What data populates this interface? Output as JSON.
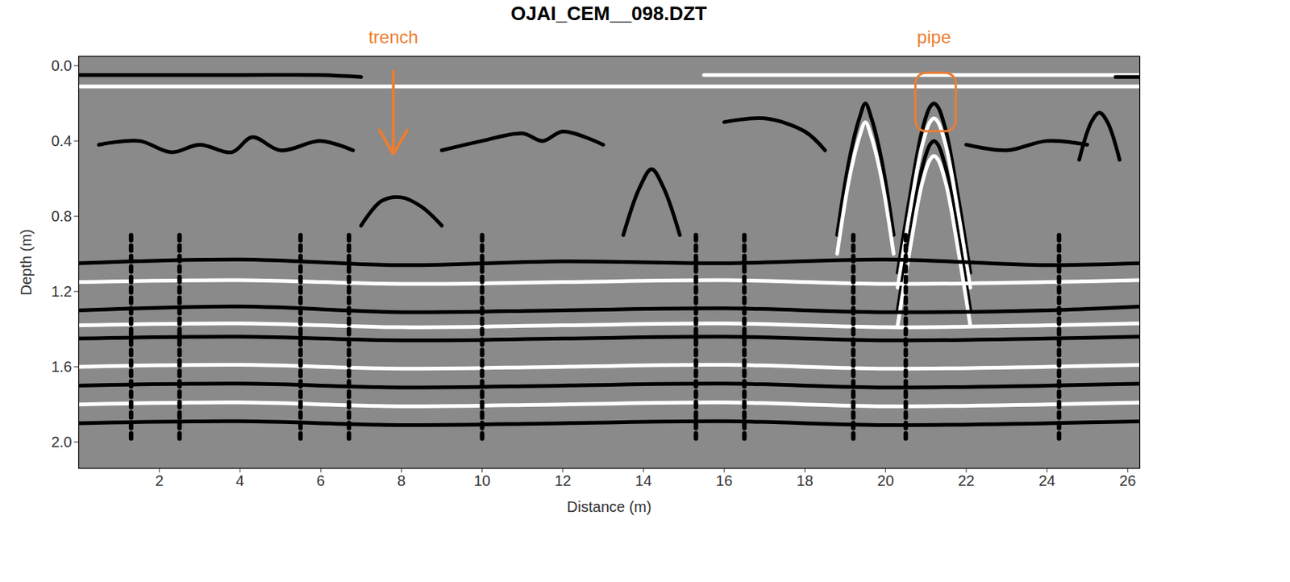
{
  "chart_data": {
    "type": "radargram",
    "title": "OJAI_CEM__098.DZT",
    "x_label": "Distance (m)",
    "y_label": "Depth (m)",
    "xlim": [
      0,
      26.3
    ],
    "ylim": [
      -0.05,
      2.14
    ],
    "xticks": [
      2,
      4,
      6,
      8,
      10,
      12,
      14,
      16,
      18,
      20,
      22,
      24,
      26
    ],
    "yticks": [
      {
        "value": 0,
        "label": "0.0"
      },
      {
        "value": 0.4,
        "label": "0.4"
      },
      {
        "value": 0.8,
        "label": "0.8"
      },
      {
        "value": 1.2,
        "label": "1.2"
      },
      {
        "value": 1.6,
        "label": "1.6"
      },
      {
        "value": 2.0,
        "label": "2.0"
      }
    ],
    "annotations": [
      {
        "text": "trench",
        "x": 7.8,
        "y": -0.15,
        "color": "#ed7d31",
        "arrow": {
          "x": 7.8,
          "y1": 0.03,
          "y2": 0.47
        }
      },
      {
        "text": "pipe",
        "x": 21.2,
        "y": -0.15,
        "color": "#ed7d31",
        "box": {
          "x1": 20.75,
          "x2": 21.75,
          "y1": 0.04,
          "y2": 0.35
        }
      }
    ],
    "reflectors": [
      {
        "color": "black",
        "line_style": "solid",
        "x": [
          0,
          2,
          4,
          6,
          7
        ],
        "y": [
          0.05,
          0.05,
          0.05,
          0.05,
          0.06
        ]
      },
      {
        "color": "white",
        "line_style": "solid",
        "x": [
          0,
          26.3
        ],
        "y": [
          0.11,
          0.11
        ]
      },
      {
        "color": "white",
        "line_style": "solid",
        "x": [
          15.5,
          26.3
        ],
        "y": [
          0.05,
          0.05
        ]
      },
      {
        "color": "black",
        "line_style": "solid",
        "x": [
          25.7,
          26.3
        ],
        "y": [
          0.06,
          0.06
        ]
      },
      {
        "color": "black",
        "line_style": "solid",
        "x": [
          0.5,
          1.5,
          2.3,
          3,
          3.8,
          4.3,
          5,
          6,
          6.8
        ],
        "y": [
          0.42,
          0.4,
          0.46,
          0.42,
          0.46,
          0.38,
          0.45,
          0.4,
          0.45
        ]
      },
      {
        "color": "black",
        "line_style": "solid",
        "x": [
          9,
          10,
          11,
          11.5,
          12,
          13
        ],
        "y": [
          0.45,
          0.4,
          0.36,
          0.4,
          0.35,
          0.42
        ]
      },
      {
        "color": "black",
        "line_style": "solid",
        "x": [
          16,
          17,
          18,
          18.5
        ],
        "y": [
          0.3,
          0.28,
          0.35,
          0.45
        ]
      },
      {
        "color": "black",
        "line_style": "solid",
        "x": [
          22,
          23,
          24,
          25
        ],
        "y": [
          0.42,
          0.45,
          0.4,
          0.42
        ]
      },
      {
        "color": "black",
        "line_style": "solid",
        "x": [
          7,
          7.5,
          8,
          8.5,
          9
        ],
        "y": [
          0.85,
          0.72,
          0.7,
          0.75,
          0.85
        ]
      },
      {
        "color": "black",
        "line_style": "solid",
        "x": [
          20.3,
          20.6,
          20.9,
          21.1,
          21.2,
          21.3,
          21.5,
          21.8,
          22.1
        ],
        "y": [
          1.1,
          0.7,
          0.35,
          0.22,
          0.2,
          0.22,
          0.35,
          0.7,
          1.1
        ]
      },
      {
        "color": "white",
        "line_style": "solid",
        "x": [
          20.3,
          20.6,
          20.9,
          21.1,
          21.2,
          21.3,
          21.5,
          21.8,
          22.1
        ],
        "y": [
          1.18,
          0.78,
          0.43,
          0.3,
          0.28,
          0.3,
          0.43,
          0.78,
          1.18
        ]
      },
      {
        "color": "black",
        "line_style": "solid",
        "x": [
          20.3,
          20.6,
          20.9,
          21.1,
          21.2,
          21.3,
          21.5,
          21.8,
          22.1
        ],
        "y": [
          1.3,
          0.9,
          0.55,
          0.42,
          0.4,
          0.42,
          0.55,
          0.9,
          1.3
        ]
      },
      {
        "color": "white",
        "line_style": "solid",
        "x": [
          20.3,
          20.6,
          20.9,
          21.1,
          21.2,
          21.3,
          21.5,
          21.8,
          22.1
        ],
        "y": [
          1.38,
          0.98,
          0.63,
          0.5,
          0.48,
          0.5,
          0.63,
          0.98,
          1.38
        ]
      },
      {
        "color": "black",
        "line_style": "solid",
        "x": [
          18.8,
          19.1,
          19.35,
          19.5,
          19.65,
          19.9,
          20.2
        ],
        "y": [
          0.9,
          0.5,
          0.28,
          0.2,
          0.28,
          0.5,
          0.9
        ]
      },
      {
        "color": "white",
        "line_style": "solid",
        "x": [
          18.8,
          19.1,
          19.35,
          19.5,
          19.65,
          19.9,
          20.2
        ],
        "y": [
          1.0,
          0.6,
          0.38,
          0.3,
          0.38,
          0.6,
          1.0
        ]
      },
      {
        "color": "black",
        "line_style": "solid",
        "x": [
          13.5,
          13.9,
          14.2,
          14.5,
          14.9
        ],
        "y": [
          0.9,
          0.65,
          0.55,
          0.65,
          0.9
        ]
      },
      {
        "color": "black",
        "line_style": "solid",
        "x": [
          24.8,
          25.1,
          25.3,
          25.5,
          25.8
        ],
        "y": [
          0.5,
          0.3,
          0.25,
          0.3,
          0.5
        ]
      },
      {
        "color": "black",
        "line_style": "solid",
        "x": [
          0,
          4,
          8,
          12,
          16,
          20,
          24,
          26.3
        ],
        "y": [
          1.05,
          1.03,
          1.06,
          1.04,
          1.05,
          1.03,
          1.06,
          1.05
        ]
      },
      {
        "color": "white",
        "line_style": "solid",
        "x": [
          0,
          4,
          8,
          12,
          16,
          20,
          24,
          26.3
        ],
        "y": [
          1.15,
          1.14,
          1.16,
          1.15,
          1.14,
          1.16,
          1.15,
          1.14
        ]
      },
      {
        "color": "black",
        "line_style": "solid",
        "x": [
          0,
          4,
          8,
          12,
          16,
          20,
          24,
          26.3
        ],
        "y": [
          1.3,
          1.28,
          1.31,
          1.3,
          1.29,
          1.31,
          1.3,
          1.28
        ]
      },
      {
        "color": "white",
        "line_style": "solid",
        "x": [
          0,
          4,
          8,
          12,
          16,
          20,
          24,
          26.3
        ],
        "y": [
          1.38,
          1.37,
          1.39,
          1.38,
          1.37,
          1.39,
          1.38,
          1.37
        ]
      },
      {
        "color": "black",
        "line_style": "solid",
        "x": [
          0,
          4,
          8,
          12,
          16,
          20,
          24,
          26.3
        ],
        "y": [
          1.45,
          1.44,
          1.46,
          1.45,
          1.44,
          1.46,
          1.45,
          1.44
        ]
      },
      {
        "color": "white",
        "line_style": "solid",
        "x": [
          0,
          4,
          8,
          12,
          16,
          20,
          24,
          26.3
        ],
        "y": [
          1.6,
          1.59,
          1.61,
          1.6,
          1.59,
          1.61,
          1.6,
          1.59
        ]
      },
      {
        "color": "black",
        "line_style": "solid",
        "x": [
          0,
          4,
          8,
          12,
          16,
          20,
          24,
          26.3
        ],
        "y": [
          1.7,
          1.69,
          1.71,
          1.7,
          1.69,
          1.71,
          1.7,
          1.69
        ]
      },
      {
        "color": "white",
        "line_style": "solid",
        "x": [
          0,
          4,
          8,
          12,
          16,
          20,
          24,
          26.3
        ],
        "y": [
          1.8,
          1.79,
          1.81,
          1.8,
          1.79,
          1.81,
          1.8,
          1.79
        ]
      },
      {
        "color": "black",
        "line_style": "solid",
        "x": [
          0,
          4,
          8,
          12,
          16,
          20,
          24,
          26.3
        ],
        "y": [
          1.9,
          1.89,
          1.91,
          1.9,
          1.89,
          1.91,
          1.9,
          1.89
        ]
      },
      {
        "color": "black",
        "line_style": "dashed",
        "x": [
          1.3,
          1.3
        ],
        "y": [
          0.9,
          2.0
        ]
      },
      {
        "color": "black",
        "line_style": "dashed",
        "x": [
          2.5,
          2.5
        ],
        "y": [
          0.9,
          2.0
        ]
      },
      {
        "color": "black",
        "line_style": "dashed",
        "x": [
          5.5,
          5.5
        ],
        "y": [
          0.9,
          2.0
        ]
      },
      {
        "color": "black",
        "line_style": "dashed",
        "x": [
          6.7,
          6.7
        ],
        "y": [
          0.9,
          2.0
        ]
      },
      {
        "color": "black",
        "line_style": "dashed",
        "x": [
          10,
          10
        ],
        "y": [
          0.9,
          2.0
        ]
      },
      {
        "color": "black",
        "line_style": "dashed",
        "x": [
          15.3,
          15.3
        ],
        "y": [
          0.9,
          2.0
        ]
      },
      {
        "color": "black",
        "line_style": "dashed",
        "x": [
          16.5,
          16.5
        ],
        "y": [
          0.9,
          2.0
        ]
      },
      {
        "color": "black",
        "line_style": "dashed",
        "x": [
          19.2,
          19.2
        ],
        "y": [
          0.9,
          2.0
        ]
      },
      {
        "color": "black",
        "line_style": "dashed",
        "x": [
          20.5,
          20.5
        ],
        "y": [
          0.9,
          2.0
        ]
      },
      {
        "color": "black",
        "line_style": "dashed",
        "x": [
          24.3,
          24.3
        ],
        "y": [
          0.9,
          2.0
        ]
      }
    ]
  }
}
